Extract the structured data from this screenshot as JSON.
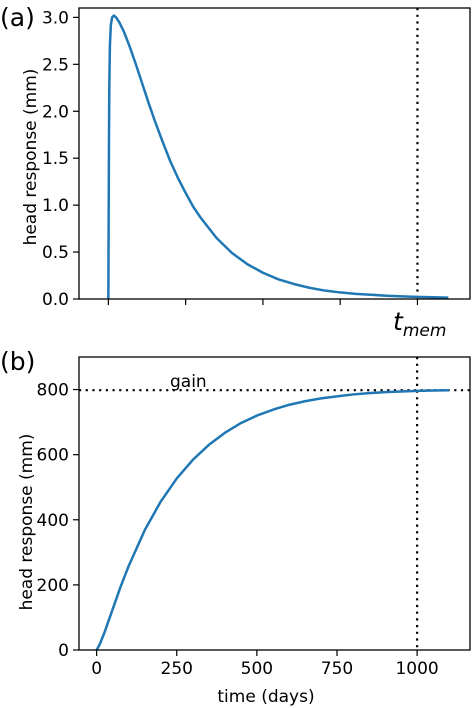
{
  "colors": {
    "series": "#1f77b4",
    "axis": "#000000"
  },
  "chart_data": [
    {
      "type": "line",
      "panel_label": "(a)",
      "title": "",
      "xlabel": "",
      "ylabel": "head response (mm)",
      "xlim": [
        -95,
        1170
      ],
      "ylim": [
        0,
        3.1
      ],
      "xticks": [
        0,
        250,
        500,
        750,
        1000
      ],
      "xticklabels": [
        "",
        "",
        "",
        "",
        ""
      ],
      "yticks": [
        0.0,
        0.5,
        1.0,
        1.5,
        2.0,
        2.5,
        3.0
      ],
      "yticklabels": [
        "0.0",
        "0.5",
        "1.0",
        "1.5",
        "2.0",
        "2.5",
        "3.0"
      ],
      "grid": false,
      "series": [
        {
          "x": [
            0,
            1,
            2,
            3,
            5,
            8,
            12,
            18,
            25,
            35,
            50,
            70,
            90,
            110,
            130,
            150,
            175,
            200,
            225,
            250,
            275,
            300,
            350,
            400,
            450,
            500,
            550,
            600,
            650,
            700,
            750,
            800,
            850,
            900,
            950,
            1000,
            1050,
            1100
          ],
          "y": [
            0.0,
            0.9,
            1.7,
            2.25,
            2.7,
            2.92,
            3.0,
            3.02,
            3.0,
            2.95,
            2.85,
            2.68,
            2.49,
            2.29,
            2.09,
            1.9,
            1.68,
            1.47,
            1.29,
            1.13,
            0.98,
            0.86,
            0.65,
            0.49,
            0.37,
            0.28,
            0.21,
            0.16,
            0.12,
            0.09,
            0.07,
            0.055,
            0.045,
            0.035,
            0.028,
            0.022,
            0.018,
            0.015
          ]
        }
      ],
      "vline": {
        "x": 1000,
        "label_base": "t",
        "label_sub": "mem"
      }
    },
    {
      "type": "line",
      "panel_label": "(b)",
      "title": "",
      "xlabel": "time (days)",
      "ylabel": "head response (mm)",
      "xlim": [
        -55,
        1165
      ],
      "ylim": [
        0,
        900
      ],
      "xticks": [
        0,
        250,
        500,
        750,
        1000
      ],
      "xticklabels": [
        "0",
        "250",
        "500",
        "750",
        "1000"
      ],
      "yticks": [
        0,
        200,
        400,
        600,
        800
      ],
      "yticklabels": [
        "0",
        "200",
        "400",
        "600",
        "800"
      ],
      "grid": false,
      "series": [
        {
          "x": [
            0,
            10,
            25,
            50,
            75,
            100,
            150,
            200,
            250,
            300,
            350,
            400,
            450,
            500,
            550,
            600,
            650,
            700,
            750,
            800,
            850,
            900,
            950,
            1000,
            1050,
            1100
          ],
          "y": [
            0,
            18,
            55,
            125,
            195,
            258,
            368,
            456,
            527,
            584,
            630,
            667,
            697,
            720,
            738,
            753,
            764,
            773,
            779,
            785,
            789,
            792,
            794,
            796,
            797,
            798
          ]
        }
      ],
      "vline": {
        "x": 1000
      },
      "hline": {
        "y": 798,
        "label": "gain"
      }
    }
  ]
}
